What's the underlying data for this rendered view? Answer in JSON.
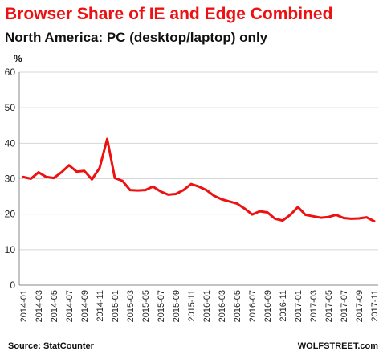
{
  "chart_data": {
    "type": "line",
    "title": "Browser Share of IE and Edge Combined",
    "subtitle": "North America: PC (desktop/laptop) only",
    "ylabel": "%",
    "xlabel": "",
    "ylim": [
      0,
      60
    ],
    "yticks": [
      0,
      10,
      20,
      30,
      40,
      50,
      60
    ],
    "grid": true,
    "legend": "none",
    "x": [
      "2014-01",
      "2014-02",
      "2014-03",
      "2014-04",
      "2014-05",
      "2014-06",
      "2014-07",
      "2014-08",
      "2014-09",
      "2014-10",
      "2014-11",
      "2014-12",
      "2015-01",
      "2015-02",
      "2015-03",
      "2015-04",
      "2015-05",
      "2015-06",
      "2015-07",
      "2015-08",
      "2015-09",
      "2015-10",
      "2015-11",
      "2015-12",
      "2016-01",
      "2016-02",
      "2016-03",
      "2016-04",
      "2016-05",
      "2016-06",
      "2016-07",
      "2016-08",
      "2016-09",
      "2016-10",
      "2016-11",
      "2016-12",
      "2017-01",
      "2017-02",
      "2017-03",
      "2017-04",
      "2017-05",
      "2017-06",
      "2017-07",
      "2017-08",
      "2017-09",
      "2017-10",
      "2017-11"
    ],
    "x_tick_labels": [
      "2014-01",
      "2014-03",
      "2014-05",
      "2014-07",
      "2014-09",
      "2014-11",
      "2015-01",
      "2015-03",
      "2015-05",
      "2015-07",
      "2015-09",
      "2015-11",
      "2016-01",
      "2016-03",
      "2016-05",
      "2016-07",
      "2016-09",
      "2016-11",
      "2017-01",
      "2017-03",
      "2017-05",
      "2017-07",
      "2017-09",
      "2017-11"
    ],
    "series": [
      {
        "color": "#ee1111",
        "values": [
          30.5,
          30.0,
          31.8,
          30.5,
          30.2,
          31.8,
          33.8,
          32.0,
          32.2,
          29.8,
          33.0,
          41.2,
          30.2,
          29.4,
          26.8,
          26.7,
          26.8,
          27.8,
          26.4,
          25.5,
          25.7,
          26.8,
          28.5,
          27.8,
          26.8,
          25.2,
          24.2,
          23.6,
          23.0,
          21.6,
          19.9,
          20.8,
          20.5,
          18.7,
          18.2,
          19.8,
          22.0,
          19.8,
          19.4,
          19.0,
          19.2,
          19.8,
          18.9,
          18.7,
          18.8,
          19.1,
          18.0
        ]
      }
    ],
    "colors": {
      "title": "#ee1111",
      "subtitle": "#111111",
      "line": "#ee1111",
      "grid": "#d7d7d7",
      "axis": "#8a8a8a"
    }
  },
  "footer": {
    "source": "Source: StatCounter",
    "brand": "WOLFSTREET.com"
  }
}
